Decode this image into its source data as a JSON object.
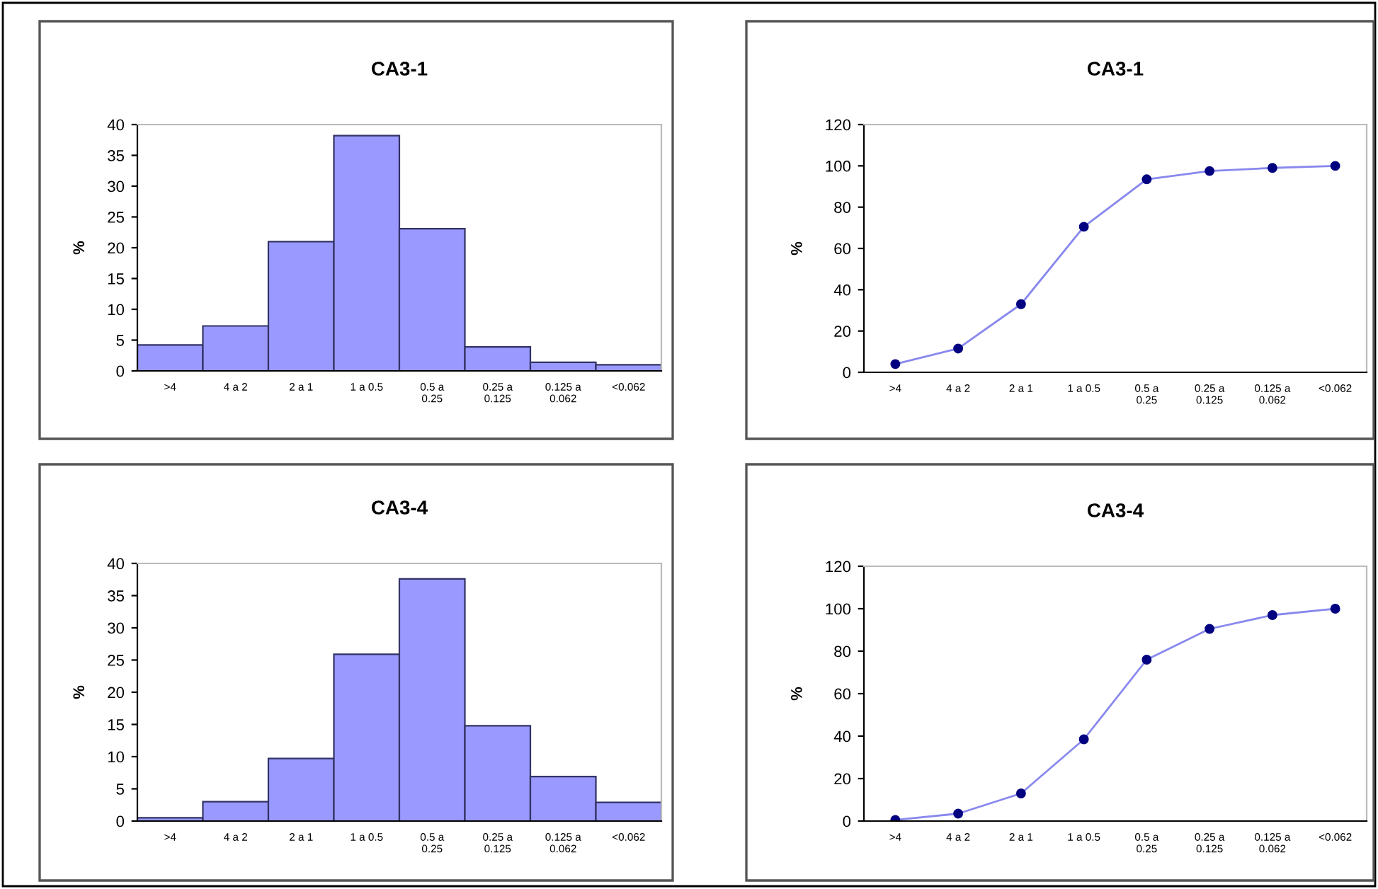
{
  "chart_data": [
    {
      "type": "bar",
      "title": "CA3-1",
      "ylabel": "%",
      "categories": [
        ">4",
        "4 a 2",
        "2 a 1",
        "1 a 0.5",
        "0.5 a\n0.25",
        "0.25 a\n0.125",
        "0.125 a\n0.062",
        "<0.062"
      ],
      "values": [
        4.2,
        7.3,
        21,
        38.2,
        23.1,
        3.9,
        1.4,
        1.0
      ],
      "color": "#9999ff",
      "ylim": [
        0,
        40
      ],
      "yticks": [
        0,
        5,
        10,
        15,
        20,
        25,
        30,
        35,
        40
      ],
      "grid": false,
      "legend": false
    },
    {
      "type": "line",
      "title": "CA3-1",
      "ylabel": "%",
      "categories": [
        ">4",
        "4 a 2",
        "2 a 1",
        "1 a 0.5",
        "0.5 a\n0.25",
        "0.25 a\n0.125",
        "0.125 a\n0.062",
        "<0.062"
      ],
      "values": [
        4,
        11.5,
        33,
        70.5,
        93.5,
        97.5,
        99,
        100
      ],
      "color": "#8888ee",
      "marker": "circle",
      "ylim": [
        0,
        120
      ],
      "yticks": [
        0,
        20,
        40,
        60,
        80,
        100,
        120
      ],
      "grid": false,
      "legend": false
    },
    {
      "type": "bar",
      "title": "CA3-4",
      "ylabel": "%",
      "categories": [
        ">4",
        "4 a 2",
        "2 a 1",
        "1 a 0.5",
        "0.5 a\n0.25",
        "0.25 a\n0.125",
        "0.125 a\n0.062",
        "<0.062"
      ],
      "values": [
        0.5,
        3,
        9.7,
        25.9,
        37.6,
        14.8,
        6.9,
        2.9
      ],
      "color": "#9999ff",
      "ylim": [
        0,
        40
      ],
      "yticks": [
        0,
        5,
        10,
        15,
        20,
        25,
        30,
        35,
        40
      ],
      "grid": false,
      "legend": false
    },
    {
      "type": "line",
      "title": "CA3-4",
      "ylabel": "%",
      "categories": [
        ">4",
        "4 a 2",
        "2 a 1",
        "1 a 0.5",
        "0.5 a\n0.25",
        "0.25 a\n0.125",
        "0.125 a\n0.062",
        "<0.062"
      ],
      "values": [
        0.5,
        3.5,
        13,
        38.5,
        76,
        90.5,
        97,
        100
      ],
      "color": "#8888ee",
      "marker": "circle",
      "ylim": [
        0,
        120
      ],
      "yticks": [
        0,
        20,
        40,
        60,
        80,
        100,
        120
      ],
      "grid": false,
      "legend": false
    }
  ]
}
